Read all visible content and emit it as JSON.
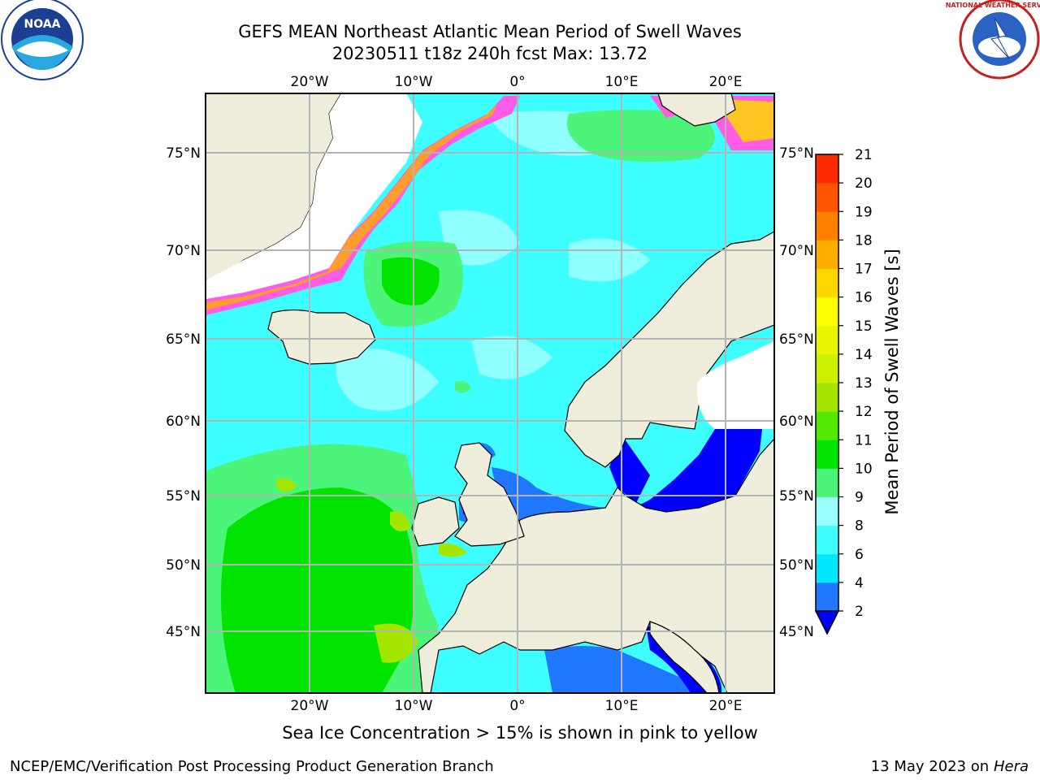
{
  "title_line1": "GEFS MEAN Northeast Atlantic Mean Period of Swell Waves",
  "title_line2": "20230511 t18z 240h fcst   Max: 13.72",
  "logos": {
    "left": "NOAA",
    "right": "NATIONAL WEATHER SERVICE"
  },
  "lon_labels": [
    "20°W",
    "10°W",
    "0°",
    "10°E",
    "20°E"
  ],
  "lat_labels": [
    "75°N",
    "70°N",
    "65°N",
    "60°N",
    "55°N",
    "50°N",
    "45°N"
  ],
  "colorbar": {
    "label": "Mean Period of Swell Waves [s]",
    "ticks": [
      "2",
      "4",
      "6",
      "8",
      "9",
      "10",
      "11",
      "12",
      "13",
      "14",
      "15",
      "16",
      "17",
      "18",
      "19",
      "20",
      "21"
    ],
    "colors": [
      "#1f78ff",
      "#00e8ff",
      "#3dffff",
      "#99ffff",
      "#4cf57a",
      "#00e400",
      "#55e800",
      "#a5e600",
      "#cdf000",
      "#e8f500",
      "#ffff00",
      "#ffd700",
      "#ffad00",
      "#ff8000",
      "#ff5500",
      "#ff2a00"
    ]
  },
  "sea_ice_note": "Sea Ice Concentration > 15% is shown in pink to yellow",
  "footer_left": "NCEP/EMC/Verification Post Processing Product Generation Branch",
  "footer_right_date": "13 May 2023 on",
  "footer_right_host": "Hera"
}
